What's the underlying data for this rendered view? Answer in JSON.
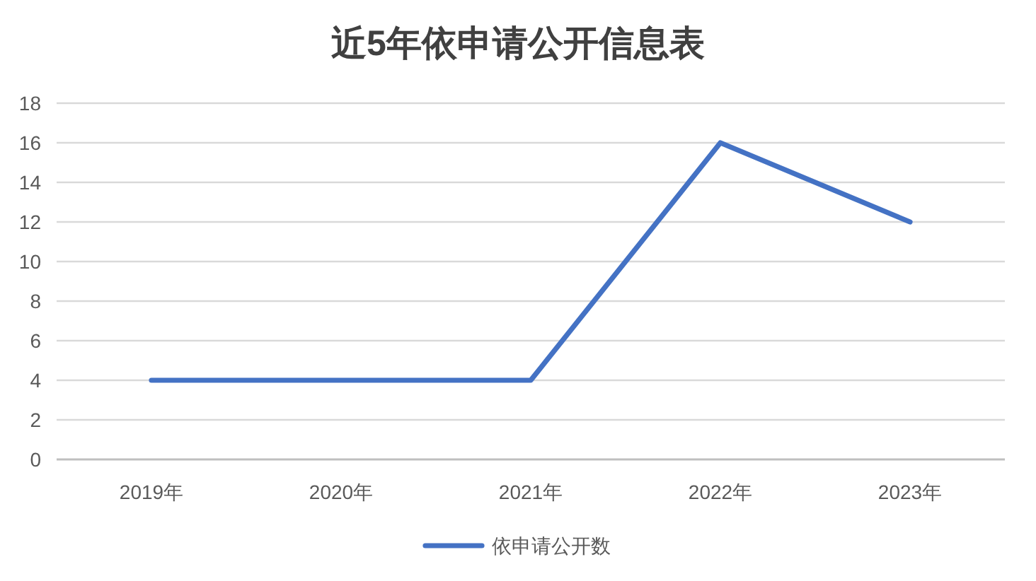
{
  "chart_data": {
    "type": "line",
    "title": "近5年依申请公开信息表",
    "categories": [
      "2019年",
      "2020年",
      "2021年",
      "2022年",
      "2023年"
    ],
    "series": [
      {
        "name": "依申请公开数",
        "color": "#4472c4",
        "values": [
          4,
          4,
          4,
          16,
          12
        ]
      }
    ],
    "ylim": [
      0,
      18
    ],
    "yticks": [
      0,
      2,
      4,
      6,
      8,
      10,
      12,
      14,
      16,
      18
    ],
    "grid": "y",
    "legend": "bottom"
  }
}
